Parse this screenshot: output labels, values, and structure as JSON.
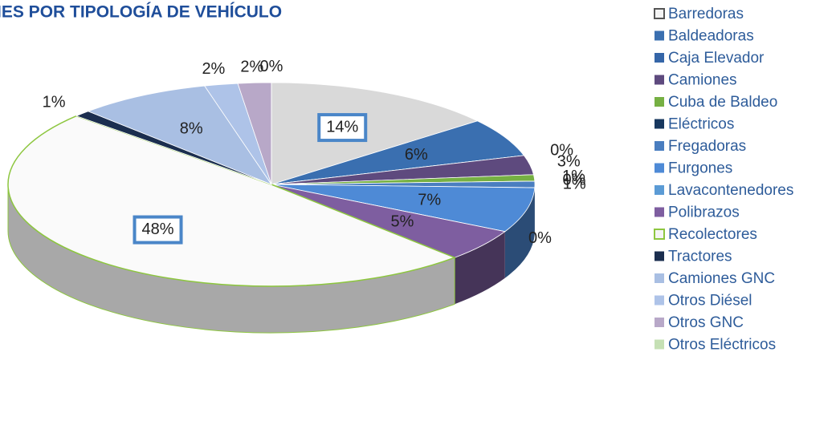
{
  "chart_data": {
    "type": "pie3d",
    "title": "IES POR TIPOLOGÍA DE VEHÍCULO",
    "categories": [
      "Barredoras",
      "Baldeadoras",
      "Caja Elevador",
      "Camiones",
      "Cuba de Baldeo",
      "Eléctricos",
      "Fregadoras",
      "Furgones",
      "Lavacontenedores",
      "Polibrazos",
      "Recolectores",
      "Tractores",
      "Camiones GNC",
      "Otros Diésel",
      "Otros GNC",
      "Otros Eléctricos"
    ],
    "values": [
      14,
      6,
      0,
      3,
      1,
      0,
      1,
      7,
      0,
      5,
      48,
      1,
      8,
      2,
      2,
      0
    ],
    "value_labels": [
      "14%",
      "6%",
      "0%",
      "3%",
      "1%",
      "0%",
      "1%",
      "7%",
      "0%",
      "5%",
      "48%",
      "1%",
      "8%",
      "2%",
      "2%",
      "0%"
    ],
    "colors": [
      "#d9d9d9",
      "#3a6fb0",
      "#3566a8",
      "#5e4a7e",
      "#76b043",
      "#17375e",
      "#4a7ec0",
      "#4e8ad6",
      "#5b9bd5",
      "#7e5ea0",
      "#fafafa",
      "#1b2e4f",
      "#a9bfe3",
      "#aec3e8",
      "#b8a8c8",
      "#c5e0b4"
    ]
  }
}
